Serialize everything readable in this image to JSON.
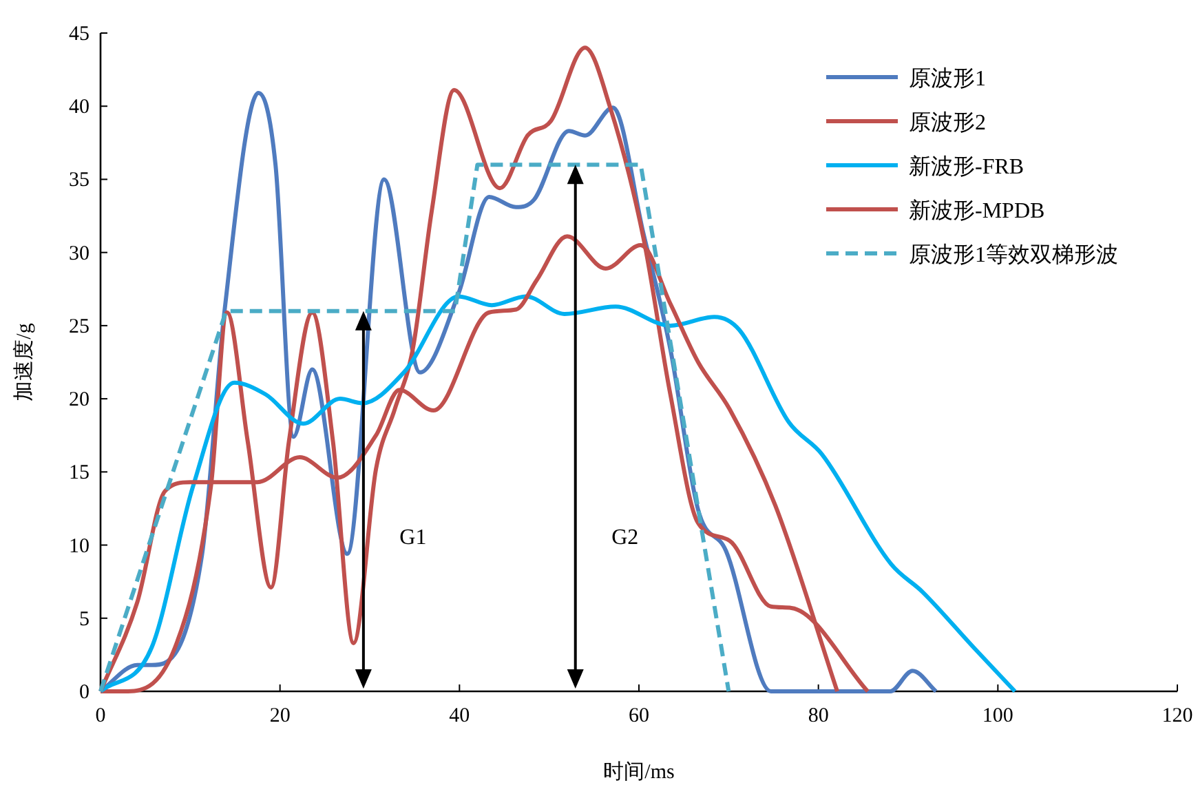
{
  "chart_data": {
    "type": "line",
    "xlabel": "时间/ms",
    "ylabel": "加速度/g",
    "xlim": [
      0,
      120
    ],
    "xticks": [
      0,
      20,
      40,
      60,
      80,
      100,
      120
    ],
    "ylim": [
      0,
      45
    ],
    "yticks": [
      0,
      5,
      10,
      15,
      20,
      25,
      30,
      35,
      40,
      45
    ],
    "grid": false,
    "legend": "top right",
    "marker": "none",
    "series": [
      {
        "name": "原波形1",
        "color": "#4f7bbf",
        "line_style": "solid",
        "x": [
          0,
          4.1,
          5.7,
          11.3,
          13.8,
          17.6,
          19.5,
          21.5,
          23.6,
          27.5,
          31.6,
          35.6,
          39.9,
          43.3,
          46.3,
          48.3,
          52.2,
          54.0,
          57.1,
          60.5,
          63.5,
          66.6,
          69.7,
          74.7,
          88,
          90.5,
          93.1
        ],
        "values": [
          0,
          1.8,
          1.8,
          9.3,
          25.9,
          40.9,
          36,
          17.4,
          22.0,
          9.4,
          35.0,
          21.8,
          27.2,
          33.8,
          33.1,
          33.6,
          38.3,
          38.0,
          39.9,
          31.3,
          23.4,
          12.4,
          9.6,
          0,
          0,
          1.4,
          0
        ]
      },
      {
        "name": "原波形2",
        "color": "#c0504d",
        "line_style": "solid",
        "x": [
          0,
          2.6,
          8.3,
          12.3,
          14.1,
          16.4,
          19.0,
          21.0,
          23.6,
          25.9,
          28.2,
          30.7,
          32.8,
          34.8,
          36.9,
          39.4,
          44.5,
          47.6,
          50.2,
          54.0,
          56.8,
          60.5,
          63.5,
          66.6,
          70.1,
          74.7,
          77.0,
          85.5
        ],
        "values": [
          0,
          0,
          3.0,
          14,
          25.9,
          17.1,
          7.1,
          17.1,
          25.9,
          17.1,
          3.3,
          15.2,
          19.3,
          23.4,
          32.8,
          41.1,
          34.4,
          38.0,
          39.0,
          44.0,
          39.9,
          31.0,
          20.3,
          11.5,
          10.3,
          5.8,
          5.7,
          0
        ]
      },
      {
        "name": "新波形-FRB",
        "color": "#00b0f0",
        "line_style": "solid",
        "x": [
          0,
          5.7,
          10.3,
          14.9,
          18.4,
          22.6,
          26.7,
          29.2,
          33.8,
          39.9,
          43.6,
          47.4,
          51.7,
          57.4,
          63.5,
          68.4,
          71.2,
          76.7,
          80.4,
          88.1,
          91.6,
          97.3,
          101.9
        ],
        "values": [
          0,
          3,
          14,
          21.1,
          20.3,
          18.3,
          20.0,
          19.7,
          21.8,
          27.0,
          26.4,
          27.0,
          25.8,
          26.3,
          25.0,
          25.6,
          24.7,
          18.4,
          16.2,
          8.7,
          6.8,
          3.0,
          0
        ]
      },
      {
        "name": "新波形-MPDB",
        "color": "#c0504d",
        "line_style": "solid",
        "x": [
          0,
          4.1,
          7.2,
          10,
          17.5,
          22.2,
          26.4,
          30.7,
          33.3,
          37.1,
          43.3,
          46.3,
          48.6,
          52.0,
          56.3,
          60.2,
          63.5,
          66.6,
          70.1,
          75.2,
          82.1
        ],
        "values": [
          0,
          6.1,
          13.7,
          14.3,
          14.3,
          16.0,
          14.6,
          17.5,
          20.6,
          19.2,
          25.9,
          26.1,
          28.1,
          31.1,
          28.9,
          30.5,
          26.5,
          22.5,
          19.3,
          12.7,
          0
        ]
      },
      {
        "name": "原波形1等效双梯形波",
        "color": "#4bacc6",
        "line_style": "dashed",
        "x": [
          0,
          14,
          39.5,
          42,
          60.2,
          70
        ],
        "values": [
          0,
          26,
          26,
          36,
          36,
          0
        ]
      }
    ],
    "annotations": [
      "G1",
      "G2"
    ]
  }
}
